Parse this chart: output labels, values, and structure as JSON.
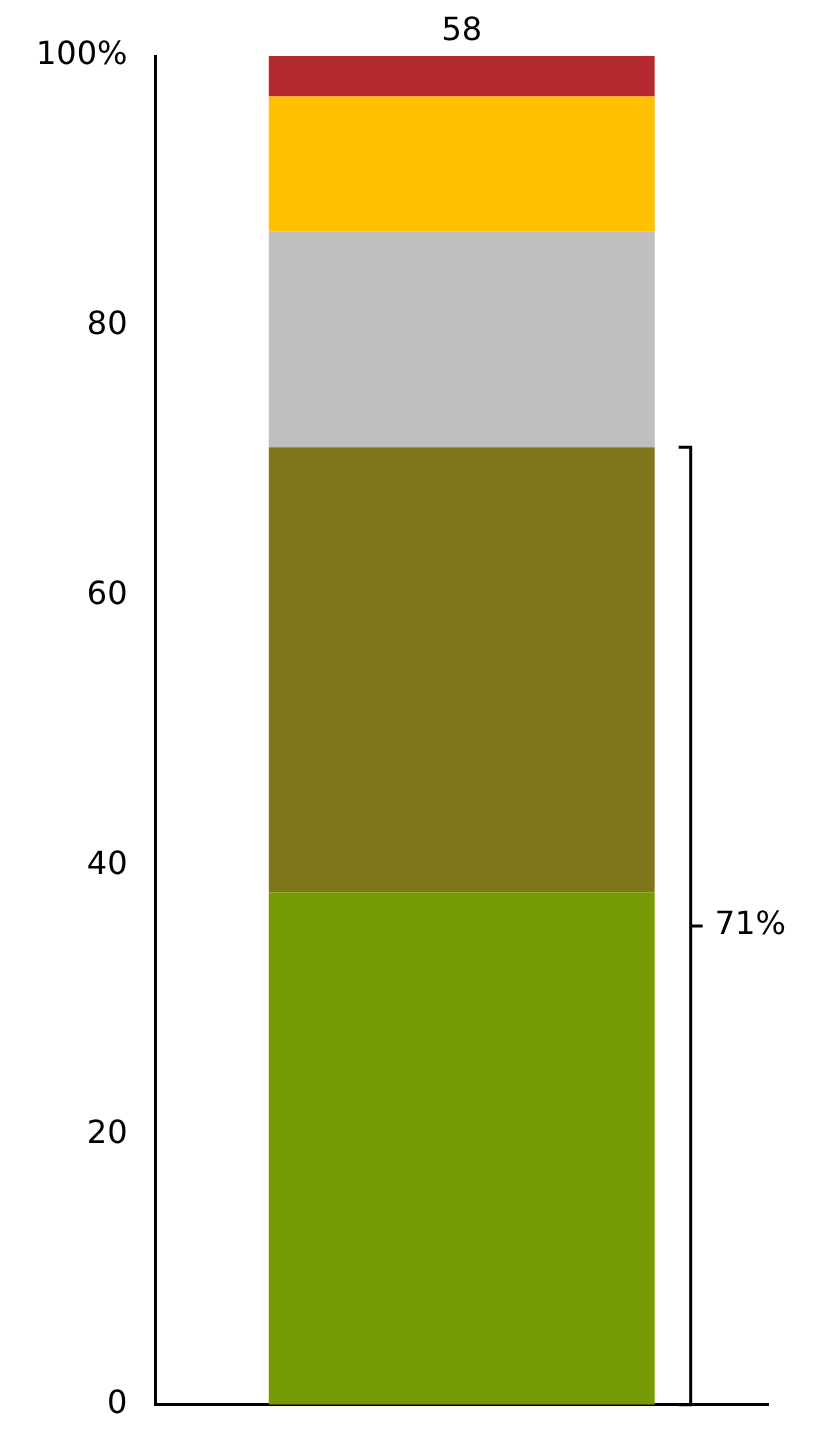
{
  "chart_data": {
    "type": "bar",
    "stacked": true,
    "categories": [
      null
    ],
    "series": [
      {
        "color": "#759a05",
        "values": [
          38
        ]
      },
      {
        "color": "#7f7619",
        "values": [
          33
        ]
      },
      {
        "color": "#bfbfbf",
        "values": [
          16
        ]
      },
      {
        "color": "#ffc000",
        "values": [
          10
        ]
      },
      {
        "color": "#b22a2e",
        "values": [
          3
        ]
      }
    ],
    "ylim": [
      0,
      100
    ],
    "yticks": [
      0,
      20,
      40,
      60,
      80,
      {
        "value": 100,
        "label": "100%"
      }
    ],
    "annotations": [
      "58",
      "71%"
    ],
    "grid": false,
    "legend": false
  }
}
